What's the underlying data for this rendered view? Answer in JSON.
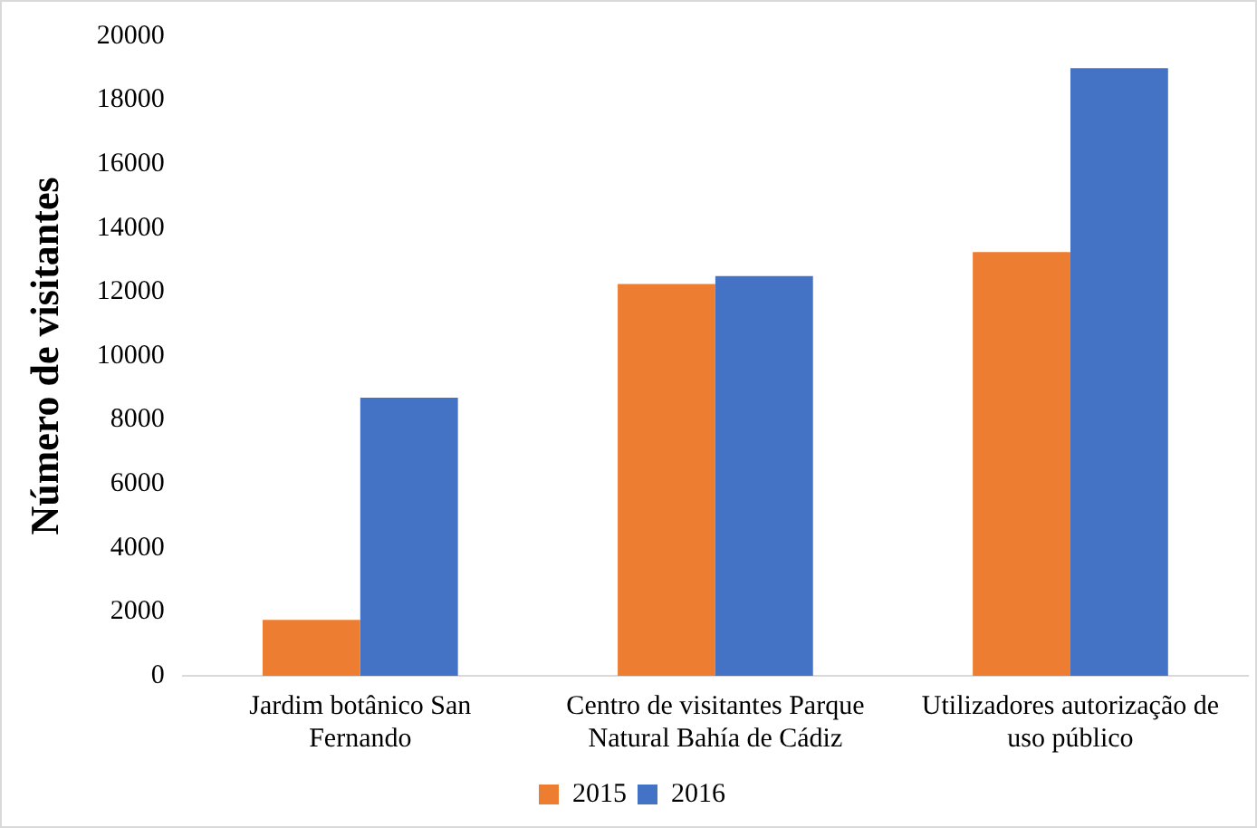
{
  "chart_data": {
    "type": "bar",
    "ylabel": "Número de visitantes",
    "categories": [
      "Jardim botânico San Fernando",
      "Centro de visitantes Parque Natural Bahía de Cádiz",
      "Utilizadores autorização de uso público"
    ],
    "series": [
      {
        "name": "2015",
        "color": "#ed7d31",
        "values": [
          1750,
          12250,
          13250
        ]
      },
      {
        "name": "2016",
        "color": "#4472c4",
        "values": [
          8700,
          12500,
          19000
        ]
      }
    ],
    "ylim": [
      0,
      20000
    ],
    "yticks": [
      0,
      2000,
      4000,
      6000,
      8000,
      10000,
      12000,
      14000,
      16000,
      18000,
      20000
    ],
    "grid": false,
    "legend": "bottom"
  }
}
